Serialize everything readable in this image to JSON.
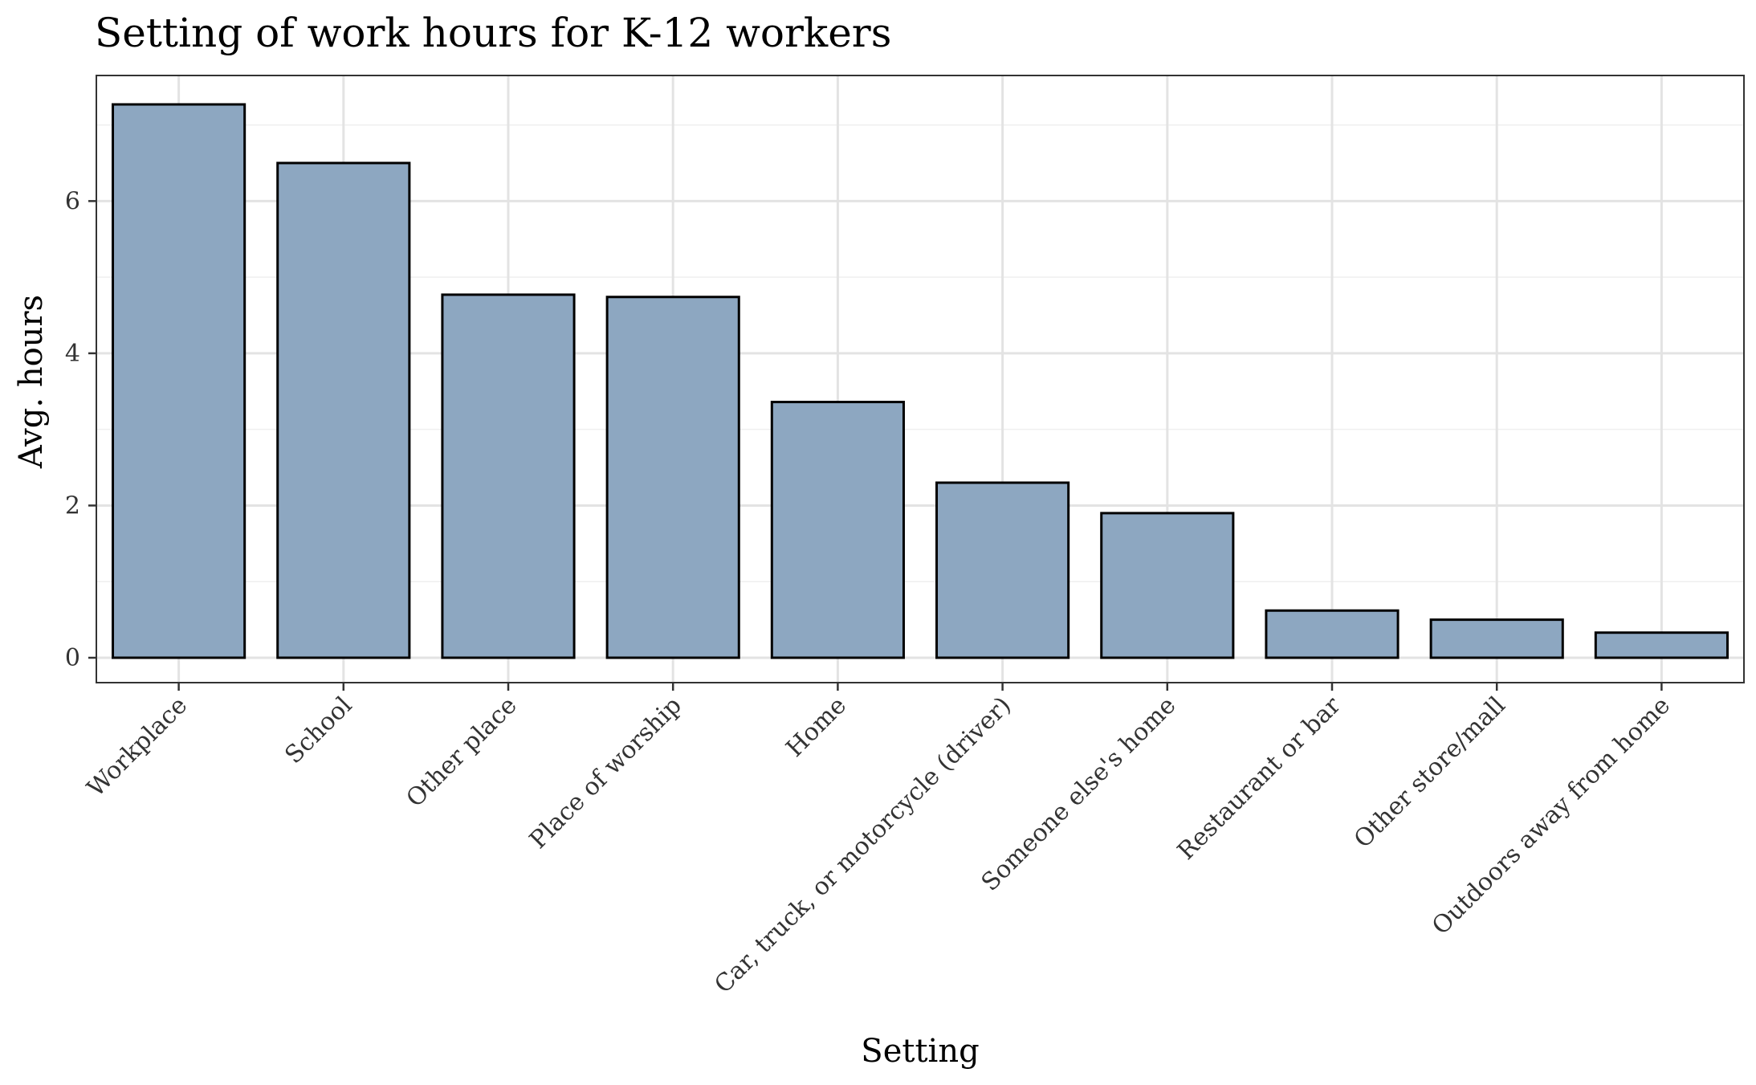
{
  "chart_data": {
    "type": "bar",
    "title": "Setting of work hours for K-12 workers",
    "xlabel": "Setting",
    "ylabel": "Avg. hours",
    "categories": [
      "Workplace",
      "School",
      "Other place",
      "Place of worship",
      "Home",
      "Car, truck, or motorcycle (driver)",
      "Someone else's home",
      "Restaurant or bar",
      "Other store/mall",
      "Outdoors away from home"
    ],
    "values": [
      7.27,
      6.5,
      4.77,
      4.74,
      3.36,
      2.3,
      1.9,
      0.62,
      0.5,
      0.33
    ],
    "ylim": [
      0,
      7.6
    ],
    "yticks": [
      0,
      2,
      4,
      6
    ],
    "grid": true,
    "legend": "none",
    "bar_color": "#8da7c1",
    "bar_outline_color": "#000000"
  }
}
